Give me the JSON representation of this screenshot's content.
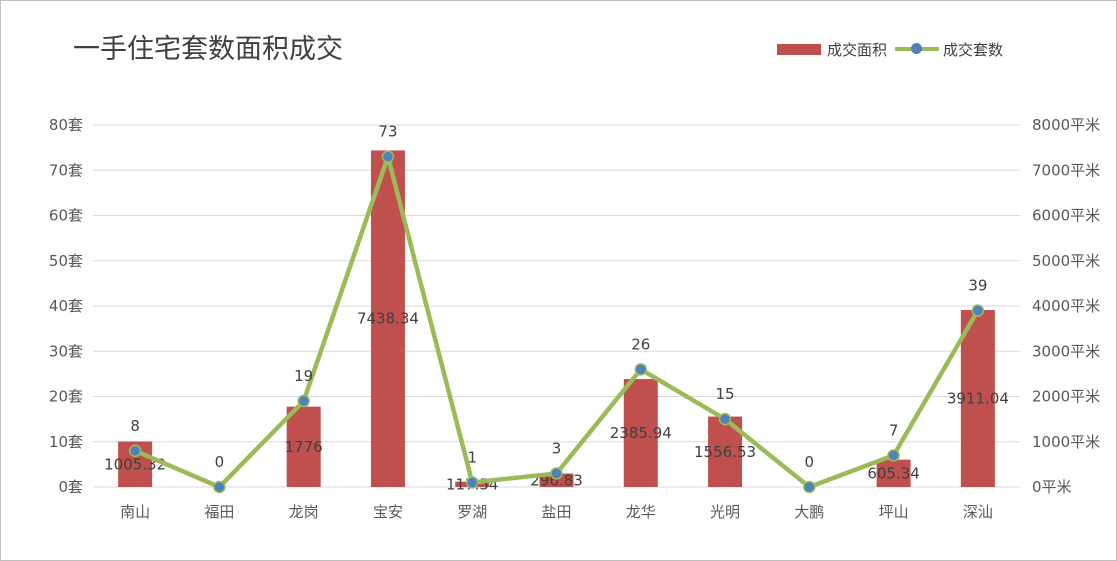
{
  "chart_data": {
    "type": "bar+line",
    "title": "一手住宅套数面积成交",
    "categories": [
      "南山",
      "福田",
      "龙岗",
      "宝安",
      "罗湖",
      "盐田",
      "龙华",
      "光明",
      "大鹏",
      "坪山",
      "深汕"
    ],
    "series": [
      {
        "name": "成交面积",
        "type": "bar",
        "axis": "right",
        "color": "#c0504d",
        "values": [
          1005.32,
          0,
          1776,
          7438.34,
          117.54,
          296.83,
          2385.94,
          1556.53,
          0,
          605.34,
          3911.04
        ],
        "labels": [
          "1005.32",
          "",
          "1776",
          "7438.34",
          "117.54",
          "296.83",
          "2385.94",
          "1556.53",
          "",
          "605.34",
          "3911.04"
        ]
      },
      {
        "name": "成交套数",
        "type": "line",
        "axis": "left",
        "color": "#9bbb59",
        "marker_color": "#4f81bd",
        "values": [
          8,
          0,
          19,
          73,
          1,
          3,
          26,
          15,
          0,
          7,
          39
        ],
        "labels": [
          "8",
          "0",
          "19",
          "73",
          "1",
          "3",
          "26",
          "15",
          "0",
          "7",
          "39"
        ]
      }
    ],
    "y_left": {
      "range": [
        0,
        80
      ],
      "ticks": [
        "0套",
        "10套",
        "20套",
        "30套",
        "40套",
        "50套",
        "60套",
        "70套",
        "80套"
      ]
    },
    "y_right": {
      "range": [
        0,
        8000
      ],
      "ticks": [
        "0平米",
        "1000平米",
        "2000平米",
        "3000平米",
        "4000平米",
        "5000平米",
        "6000平米",
        "7000平米",
        "8000平米"
      ]
    },
    "grid": true,
    "legend_position": "top-right",
    "gridline_color": "#d9d9d9"
  }
}
